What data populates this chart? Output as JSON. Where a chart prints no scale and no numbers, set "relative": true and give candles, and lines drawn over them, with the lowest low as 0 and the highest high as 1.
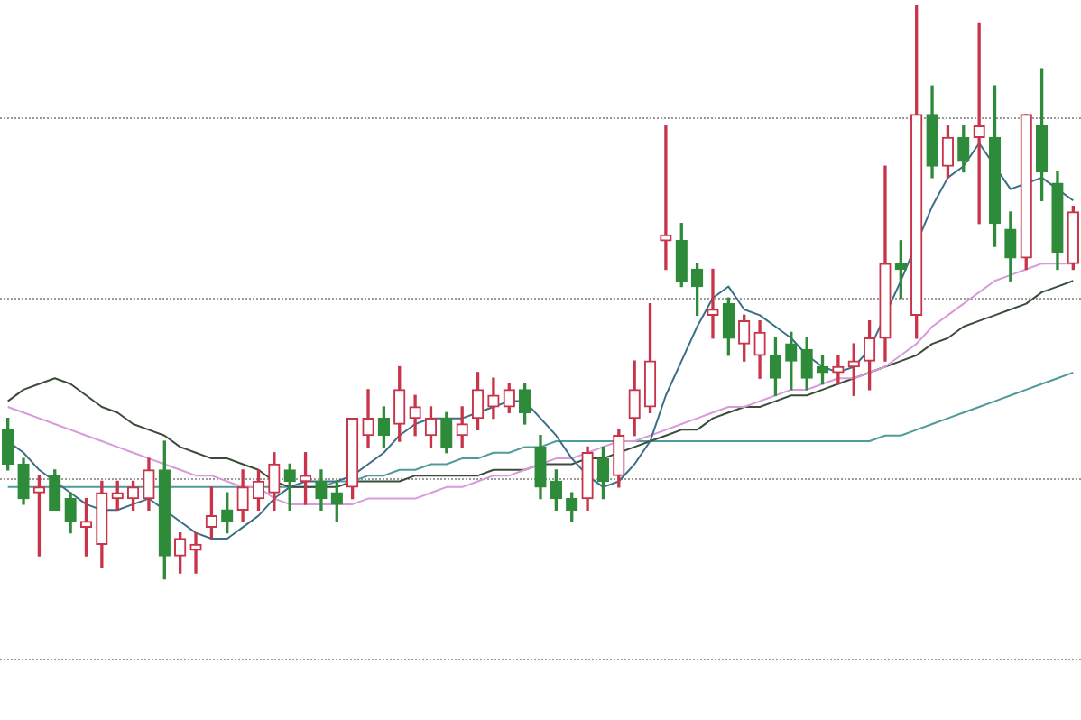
{
  "chart_data": {
    "type": "candlestick",
    "relative": true,
    "legend": false,
    "categories": [
      null,
      null,
      null,
      null,
      null,
      null,
      null,
      null,
      null,
      null,
      null,
      null,
      null,
      null,
      null,
      null,
      null,
      null,
      null,
      null,
      null,
      null,
      null,
      null,
      null,
      null,
      null,
      null,
      null,
      null,
      null,
      null,
      null,
      null,
      null,
      null,
      null,
      null,
      null,
      null,
      null,
      null,
      null,
      null,
      null,
      null,
      null,
      null,
      null,
      null,
      null,
      null,
      null,
      null,
      null,
      null,
      null,
      null,
      null,
      null,
      null,
      null,
      null,
      null,
      null,
      null,
      null,
      null,
      null
    ],
    "series": [
      {
        "colors": [
          "#2e8b3a",
          "#2e8b3a",
          "#c8344a",
          "#2e8b3a",
          "#2e8b3a",
          "#c8344a",
          "#c8344a",
          "#c8344a",
          "#c8344a",
          "#c8344a",
          "#2e8b3a",
          "#c8344a",
          "#c8344a",
          "#c8344a",
          "#2e8b3a",
          "#c8344a",
          "#c8344a",
          "#c8344a",
          "#2e8b3a",
          "#c8344a",
          "#2e8b3a",
          "#2e8b3a",
          "#c8344a",
          "#c8344a",
          "#2e8b3a",
          "#c8344a",
          "#c8344a",
          "#c8344a",
          "#2e8b3a",
          "#c8344a",
          "#c8344a",
          "#c8344a",
          "#c8344a",
          "#2e8b3a",
          "#2e8b3a",
          "#2e8b3a",
          "#2e8b3a",
          "#c8344a",
          "#2e8b3a",
          "#c8344a",
          "#c8344a",
          "#c8344a",
          "#c8344a",
          "#2e8b3a",
          "#2e8b3a",
          "#c8344a",
          "#2e8b3a",
          "#c8344a",
          "#c8344a",
          "#2e8b3a",
          "#2e8b3a",
          "#2e8b3a",
          "#2e8b3a",
          "#c8344a",
          "#c8344a",
          "#c8344a",
          "#c8344a",
          "#2e8b3a",
          "#c8344a",
          "#2e8b3a",
          "#c8344a",
          "#2e8b3a",
          "#c8344a",
          "#2e8b3a",
          "#2e8b3a",
          "#c8344a",
          "#2e8b3a",
          "#2e8b3a",
          "#c8344a"
        ],
        "ohlc": [
          [
            0.26,
            0.28,
            0.19,
            0.2
          ],
          [
            0.2,
            0.21,
            0.13,
            0.14
          ],
          [
            0.15,
            0.18,
            0.04,
            0.16
          ],
          [
            0.18,
            0.19,
            0.12,
            0.12
          ],
          [
            0.14,
            0.15,
            0.08,
            0.1
          ],
          [
            0.09,
            0.14,
            0.04,
            0.1
          ],
          [
            0.06,
            0.17,
            0.02,
            0.15
          ],
          [
            0.14,
            0.17,
            0.12,
            0.15
          ],
          [
            0.14,
            0.17,
            0.12,
            0.16
          ],
          [
            0.14,
            0.21,
            0.12,
            0.19
          ],
          [
            0.19,
            0.24,
            0.0,
            0.04
          ],
          [
            0.04,
            0.08,
            0.01,
            0.07
          ],
          [
            0.05,
            0.08,
            0.01,
            0.06
          ],
          [
            0.09,
            0.16,
            0.07,
            0.11
          ],
          [
            0.12,
            0.15,
            0.08,
            0.1
          ],
          [
            0.12,
            0.19,
            0.1,
            0.16
          ],
          [
            0.14,
            0.19,
            0.12,
            0.17
          ],
          [
            0.15,
            0.22,
            0.12,
            0.2
          ],
          [
            0.19,
            0.2,
            0.12,
            0.17
          ],
          [
            0.17,
            0.22,
            0.13,
            0.18
          ],
          [
            0.17,
            0.19,
            0.12,
            0.14
          ],
          [
            0.15,
            0.17,
            0.1,
            0.13
          ],
          [
            0.16,
            0.28,
            0.14,
            0.28
          ],
          [
            0.25,
            0.33,
            0.23,
            0.28
          ],
          [
            0.28,
            0.3,
            0.23,
            0.25
          ],
          [
            0.27,
            0.37,
            0.24,
            0.33
          ],
          [
            0.28,
            0.32,
            0.25,
            0.3
          ],
          [
            0.25,
            0.3,
            0.23,
            0.28
          ],
          [
            0.28,
            0.29,
            0.22,
            0.23
          ],
          [
            0.25,
            0.3,
            0.23,
            0.27
          ],
          [
            0.28,
            0.36,
            0.26,
            0.33
          ],
          [
            0.3,
            0.35,
            0.28,
            0.32
          ],
          [
            0.3,
            0.34,
            0.29,
            0.33
          ],
          [
            0.33,
            0.34,
            0.27,
            0.29
          ],
          [
            0.23,
            0.25,
            0.14,
            0.16
          ],
          [
            0.17,
            0.19,
            0.12,
            0.14
          ],
          [
            0.14,
            0.15,
            0.1,
            0.12
          ],
          [
            0.14,
            0.23,
            0.12,
            0.22
          ],
          [
            0.21,
            0.23,
            0.14,
            0.17
          ],
          [
            0.18,
            0.26,
            0.16,
            0.25
          ],
          [
            0.28,
            0.38,
            0.25,
            0.33
          ],
          [
            0.3,
            0.48,
            0.29,
            0.38
          ],
          [
            0.59,
            0.79,
            0.54,
            0.6
          ],
          [
            0.59,
            0.62,
            0.51,
            0.52
          ],
          [
            0.54,
            0.55,
            0.46,
            0.51
          ],
          [
            0.46,
            0.54,
            0.42,
            0.47
          ],
          [
            0.48,
            0.49,
            0.39,
            0.42
          ],
          [
            0.41,
            0.46,
            0.38,
            0.45
          ],
          [
            0.39,
            0.45,
            0.35,
            0.43
          ],
          [
            0.39,
            0.42,
            0.32,
            0.35
          ],
          [
            0.41,
            0.43,
            0.33,
            0.38
          ],
          [
            0.4,
            0.42,
            0.33,
            0.35
          ],
          [
            0.37,
            0.39,
            0.34,
            0.36
          ],
          [
            0.36,
            0.39,
            0.34,
            0.37
          ],
          [
            0.37,
            0.41,
            0.32,
            0.38
          ],
          [
            0.38,
            0.45,
            0.33,
            0.42
          ],
          [
            0.42,
            0.72,
            0.38,
            0.55
          ],
          [
            0.55,
            0.59,
            0.49,
            0.54
          ],
          [
            0.46,
            1.0,
            0.42,
            0.81
          ],
          [
            0.81,
            0.86,
            0.7,
            0.72
          ],
          [
            0.72,
            0.79,
            0.7,
            0.77
          ],
          [
            0.77,
            0.79,
            0.71,
            0.73
          ],
          [
            0.77,
            0.97,
            0.62,
            0.79
          ],
          [
            0.77,
            0.86,
            0.58,
            0.62
          ],
          [
            0.61,
            0.64,
            0.52,
            0.56
          ],
          [
            0.56,
            0.81,
            0.54,
            0.81
          ],
          [
            0.79,
            0.89,
            0.66,
            0.71
          ],
          [
            0.69,
            0.71,
            0.54,
            0.57
          ],
          [
            0.55,
            0.65,
            0.54,
            0.64
          ]
        ]
      },
      {
        "type": "line",
        "color": "#3b6f86",
        "values": [
          0.24,
          0.22,
          0.19,
          0.17,
          0.15,
          0.13,
          0.12,
          0.12,
          0.13,
          0.14,
          0.12,
          0.1,
          0.08,
          0.07,
          0.07,
          0.09,
          0.11,
          0.14,
          0.16,
          0.17,
          0.17,
          0.17,
          0.18,
          0.2,
          0.22,
          0.25,
          0.27,
          0.28,
          0.28,
          0.28,
          0.29,
          0.3,
          0.31,
          0.31,
          0.28,
          0.25,
          0.21,
          0.18,
          0.16,
          0.17,
          0.2,
          0.24,
          0.32,
          0.38,
          0.44,
          0.49,
          0.51,
          0.47,
          0.46,
          0.44,
          0.42,
          0.39,
          0.37,
          0.36,
          0.37,
          0.4,
          null,
          0.52,
          null,
          0.65,
          0.7,
          0.72,
          0.76,
          null,
          0.68,
          0.69,
          0.7,
          0.68,
          0.66
        ]
      },
      {
        "type": "line",
        "color": "#d89ad8",
        "values": [
          0.3,
          0.29,
          0.28,
          0.27,
          0.26,
          0.25,
          0.24,
          0.23,
          0.22,
          0.21,
          0.2,
          0.19,
          0.18,
          0.18,
          0.17,
          0.16,
          0.16,
          0.14,
          0.13,
          0.13,
          0.13,
          0.13,
          0.13,
          0.14,
          0.14,
          0.14,
          0.14,
          0.15,
          0.16,
          0.16,
          0.17,
          0.18,
          0.18,
          0.19,
          0.2,
          0.21,
          0.21,
          0.22,
          0.23,
          0.24,
          0.24,
          0.25,
          0.26,
          0.27,
          0.28,
          0.29,
          0.3,
          0.3,
          0.31,
          0.32,
          0.33,
          0.33,
          0.34,
          0.35,
          0.35,
          0.36,
          0.37,
          0.39,
          0.41,
          0.44,
          0.46,
          0.48,
          0.5,
          0.52,
          0.53,
          0.54,
          0.55,
          0.55,
          0.55
        ]
      },
      {
        "type": "line",
        "color": "#3a4d3a",
        "values": [
          0.31,
          0.33,
          0.34,
          0.35,
          0.34,
          0.32,
          0.3,
          0.29,
          0.27,
          0.26,
          0.25,
          0.23,
          0.22,
          0.21,
          0.21,
          0.2,
          0.19,
          0.17,
          0.16,
          0.16,
          0.16,
          0.16,
          0.17,
          0.17,
          0.17,
          0.17,
          0.18,
          0.18,
          0.18,
          0.18,
          0.18,
          0.19,
          0.19,
          0.19,
          0.2,
          0.2,
          0.2,
          0.21,
          0.21,
          0.22,
          0.23,
          0.24,
          0.25,
          0.26,
          0.26,
          0.28,
          0.29,
          0.3,
          0.3,
          0.31,
          0.32,
          0.32,
          0.33,
          0.34,
          0.35,
          null,
          0.37,
          0.38,
          0.39,
          0.41,
          0.42,
          0.44,
          0.45,
          0.46,
          0.47,
          0.48,
          0.5,
          0.51,
          0.52
        ]
      },
      {
        "type": "line",
        "color": "#4f9a9a",
        "values": [
          0.16,
          0.16,
          0.16,
          0.16,
          0.16,
          0.16,
          0.16,
          0.16,
          0.16,
          0.16,
          0.16,
          0.16,
          0.16,
          0.16,
          0.16,
          0.16,
          0.16,
          0.16,
          0.16,
          0.16,
          0.16,
          0.17,
          0.17,
          0.18,
          0.18,
          0.19,
          0.19,
          0.2,
          0.2,
          0.21,
          0.21,
          0.22,
          0.22,
          0.23,
          0.23,
          0.24,
          0.24,
          0.24,
          0.24,
          0.24,
          0.24,
          0.24,
          0.24,
          0.24,
          0.24,
          0.24,
          0.24,
          0.24,
          0.24,
          0.24,
          0.24,
          0.24,
          0.24,
          0.24,
          0.24,
          0.24,
          0.25,
          0.25,
          0.26,
          0.27,
          0.28,
          0.29,
          0.3,
          0.31,
          0.32,
          0.33,
          0.34,
          0.35,
          0.36
        ]
      }
    ]
  }
}
